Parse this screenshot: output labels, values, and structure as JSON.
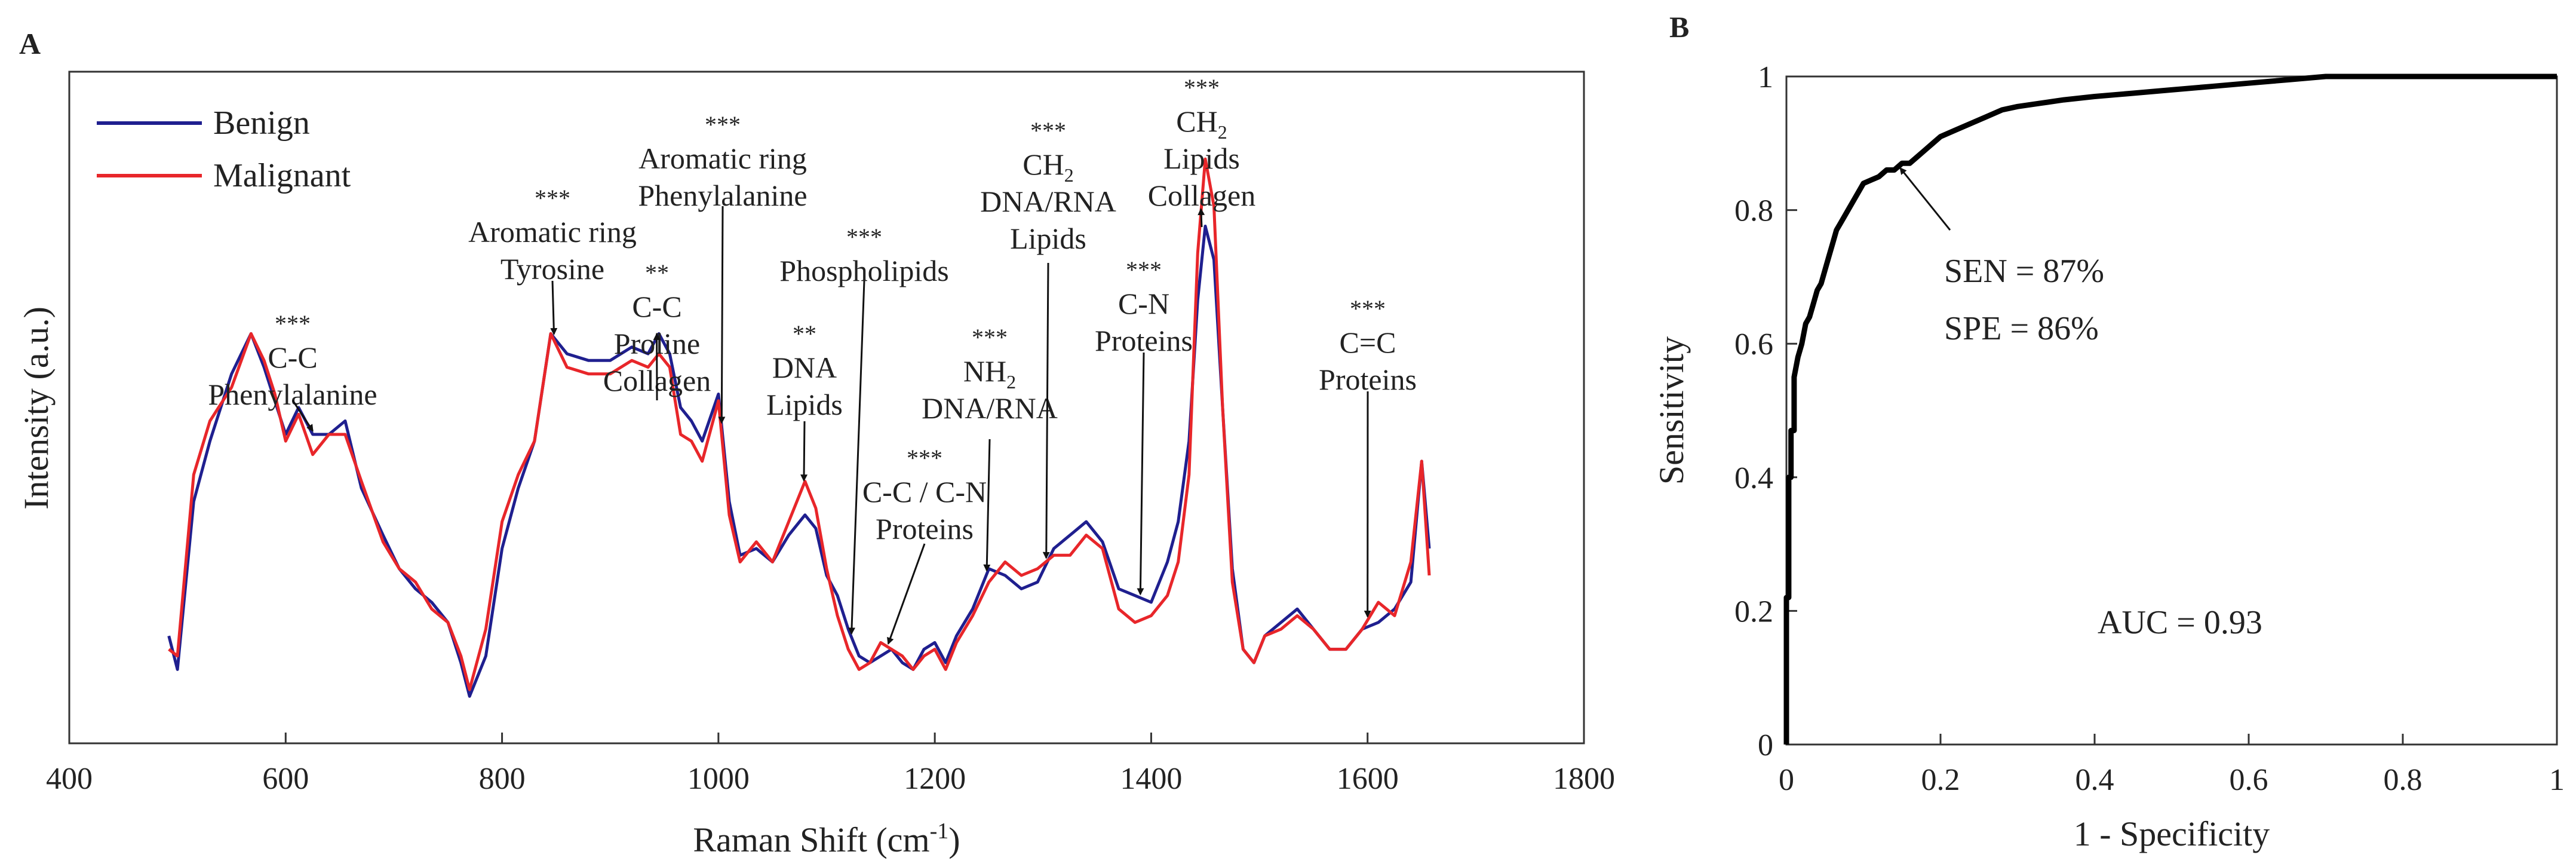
{
  "chart_data": [
    {
      "panel": "A",
      "type": "line",
      "xlabel": "Raman Shift (cm",
      "xlabel_sup": "-1",
      "xlabel_end": ")",
      "ylabel": "Intensity (a.u.)",
      "xlim": [
        400,
        1800
      ],
      "ylim": [
        0,
        100
      ],
      "grid": false,
      "xticks": [
        400,
        600,
        800,
        1000,
        1200,
        1400,
        1600,
        1800
      ],
      "legend": {
        "position": "top-left",
        "entries": [
          {
            "name": "Benign",
            "color": "#1f1f8f"
          },
          {
            "name": "Malignant",
            "color": "#e8262a"
          }
        ]
      },
      "series": [
        {
          "name": "Benign",
          "color": "#1f1f8f",
          "x": [
            492,
            500,
            515,
            530,
            550,
            568,
            580,
            590,
            600,
            612,
            625,
            640,
            655,
            670,
            690,
            705,
            720,
            735,
            750,
            762,
            770,
            785,
            800,
            815,
            830,
            845,
            860,
            880,
            900,
            920,
            935,
            945,
            955,
            965,
            975,
            985,
            1000,
            1010,
            1020,
            1035,
            1050,
            1065,
            1080,
            1090,
            1100,
            1110,
            1120,
            1130,
            1140,
            1150,
            1160,
            1170,
            1180,
            1190,
            1200,
            1210,
            1220,
            1235,
            1250,
            1265,
            1280,
            1295,
            1310,
            1325,
            1340,
            1355,
            1370,
            1385,
            1400,
            1415,
            1425,
            1435,
            1443,
            1450,
            1458,
            1466,
            1475,
            1485,
            1495,
            1505,
            1520,
            1535,
            1550,
            1565,
            1580,
            1595,
            1610,
            1625,
            1640,
            1650,
            1657
          ],
          "values": [
            16,
            11,
            36,
            45,
            55,
            61,
            56,
            51,
            46,
            50,
            46,
            46,
            48,
            38,
            31,
            26,
            23,
            21,
            18,
            12,
            7,
            13,
            29,
            38,
            45,
            61,
            58,
            57,
            57,
            59,
            58,
            61,
            58,
            50,
            48,
            45,
            52,
            36,
            28,
            29,
            27,
            31,
            34,
            32,
            25,
            22,
            17,
            13,
            12,
            13,
            14,
            12,
            11,
            14,
            15,
            12,
            16,
            20,
            26,
            25,
            23,
            24,
            29,
            31,
            33,
            30,
            23,
            22,
            21,
            27,
            33,
            45,
            66,
            77,
            72,
            50,
            26,
            14,
            12,
            16,
            18,
            20,
            17,
            14,
            14,
            17,
            18,
            20,
            24,
            42,
            29
          ]
        },
        {
          "name": "Malignant",
          "color": "#e8262a",
          "x": [
            492,
            500,
            515,
            530,
            550,
            568,
            580,
            590,
            600,
            612,
            625,
            640,
            655,
            670,
            690,
            705,
            720,
            735,
            750,
            762,
            770,
            785,
            800,
            815,
            830,
            845,
            860,
            880,
            900,
            920,
            935,
            945,
            955,
            965,
            975,
            985,
            1000,
            1010,
            1020,
            1035,
            1050,
            1065,
            1080,
            1090,
            1100,
            1110,
            1120,
            1130,
            1140,
            1150,
            1160,
            1170,
            1180,
            1190,
            1200,
            1210,
            1220,
            1235,
            1250,
            1265,
            1280,
            1295,
            1310,
            1325,
            1340,
            1355,
            1370,
            1385,
            1400,
            1415,
            1425,
            1435,
            1443,
            1450,
            1458,
            1466,
            1475,
            1485,
            1495,
            1505,
            1520,
            1535,
            1550,
            1565,
            1580,
            1595,
            1610,
            1625,
            1640,
            1650,
            1657
          ],
          "values": [
            14,
            13,
            40,
            48,
            53,
            61,
            57,
            52,
            45,
            49,
            43,
            46,
            46,
            39,
            30,
            26,
            24,
            20,
            18,
            13,
            8,
            17,
            33,
            40,
            45,
            61,
            56,
            55,
            55,
            57,
            56,
            58,
            56,
            46,
            45,
            42,
            51,
            34,
            27,
            30,
            27,
            33,
            39,
            35,
            26,
            19,
            14,
            11,
            12,
            15,
            14,
            13,
            11,
            13,
            14,
            11,
            15,
            19,
            24,
            27,
            25,
            26,
            28,
            28,
            31,
            29,
            20,
            18,
            19,
            22,
            27,
            40,
            73,
            87,
            80,
            50,
            24,
            14,
            12,
            16,
            17,
            19,
            17,
            14,
            14,
            17,
            21,
            19,
            27,
            42,
            25
          ]
        }
      ],
      "annotations": [
        {
          "stars": "***",
          "lines": [
            "C-C",
            "Phenylalanine"
          ],
          "x": 625
        },
        {
          "stars": "***",
          "lines": [
            "Aromatic ring",
            "Tyrosine"
          ],
          "x": 848
        },
        {
          "stars": "**",
          "lines": [
            "C-C",
            "Proline",
            "Collagen"
          ],
          "x": 943
        },
        {
          "stars": "***",
          "lines": [
            "Aromatic ring",
            "Phenylalanine"
          ],
          "x": 1003
        },
        {
          "stars": "**",
          "lines": [
            "DNA",
            "Lipids"
          ],
          "x": 1079
        },
        {
          "stars": "***",
          "lines": [
            "Phospholipids"
          ],
          "x": 1123
        },
        {
          "stars": "***",
          "lines": [
            "C-C / C-N",
            "Proteins"
          ],
          "x": 1157
        },
        {
          "stars": "***",
          "lines": [
            "NH",
            "DNA/RNA"
          ],
          "sub": "2",
          "x": 1248
        },
        {
          "stars": "***",
          "lines": [
            "CH",
            "DNA/RNA",
            "Lipids"
          ],
          "sub": "2",
          "x": 1303
        },
        {
          "stars": "***",
          "lines": [
            "C-N",
            "Proteins"
          ],
          "x": 1390
        },
        {
          "stars": "***",
          "lines": [
            "CH",
            "Lipids",
            "Collagen"
          ],
          "sub": "2",
          "x": 1446
        },
        {
          "stars": "***",
          "lines": [
            "C=C",
            "Proteins"
          ],
          "x": 1600
        }
      ]
    },
    {
      "panel": "B",
      "type": "line",
      "subtype": "roc",
      "xlabel": "1 - Specificity",
      "ylabel": "Sensitivity",
      "xlim": [
        0,
        1
      ],
      "ylim": [
        0,
        1
      ],
      "xticks": [
        0,
        0.2,
        0.4,
        0.6,
        0.8,
        1
      ],
      "xtick_labels": [
        "0",
        "0.2",
        "0.4",
        "0.6",
        "0.8",
        "1"
      ],
      "yticks": [
        0,
        0.2,
        0.4,
        0.6,
        0.8,
        1
      ],
      "ytick_labels": [
        "0",
        "0.2",
        "0.4",
        "0.6",
        "0.8",
        "1"
      ],
      "series": [
        {
          "name": "ROC",
          "color": "#000000",
          "x": [
            0,
            0,
            0.003,
            0.003,
            0.006,
            0.006,
            0.01,
            0.01,
            0.015,
            0.02,
            0.025,
            0.03,
            0.035,
            0.04,
            0.045,
            0.05,
            0.055,
            0.06,
            0.065,
            0.07,
            0.075,
            0.08,
            0.09,
            0.1,
            0.11,
            0.12,
            0.13,
            0.14,
            0.15,
            0.16,
            0.17,
            0.18,
            0.19,
            0.2,
            0.22,
            0.24,
            0.26,
            0.28,
            0.3,
            0.33,
            0.36,
            0.4,
            0.45,
            0.5,
            0.55,
            0.6,
            0.65,
            0.7,
            0.8,
            0.9,
            1.0
          ],
          "values": [
            0,
            0.22,
            0.22,
            0.4,
            0.4,
            0.47,
            0.47,
            0.55,
            0.58,
            0.6,
            0.63,
            0.64,
            0.66,
            0.68,
            0.69,
            0.71,
            0.73,
            0.75,
            0.77,
            0.78,
            0.79,
            0.8,
            0.82,
            0.84,
            0.845,
            0.85,
            0.86,
            0.86,
            0.87,
            0.87,
            0.88,
            0.89,
            0.9,
            0.91,
            0.92,
            0.93,
            0.94,
            0.95,
            0.955,
            0.96,
            0.965,
            0.97,
            0.975,
            0.98,
            0.985,
            0.99,
            0.995,
            1.0,
            1.0,
            1.0,
            1.0
          ]
        }
      ],
      "operating_point": {
        "x": 0.14,
        "y": 0.87
      },
      "annotations": {
        "sen": "SEN = 87%",
        "spe": "SPE = 86%",
        "auc": "AUC = 0.93"
      }
    }
  ],
  "labels": {
    "panel_a": "A",
    "panel_b": "B"
  }
}
